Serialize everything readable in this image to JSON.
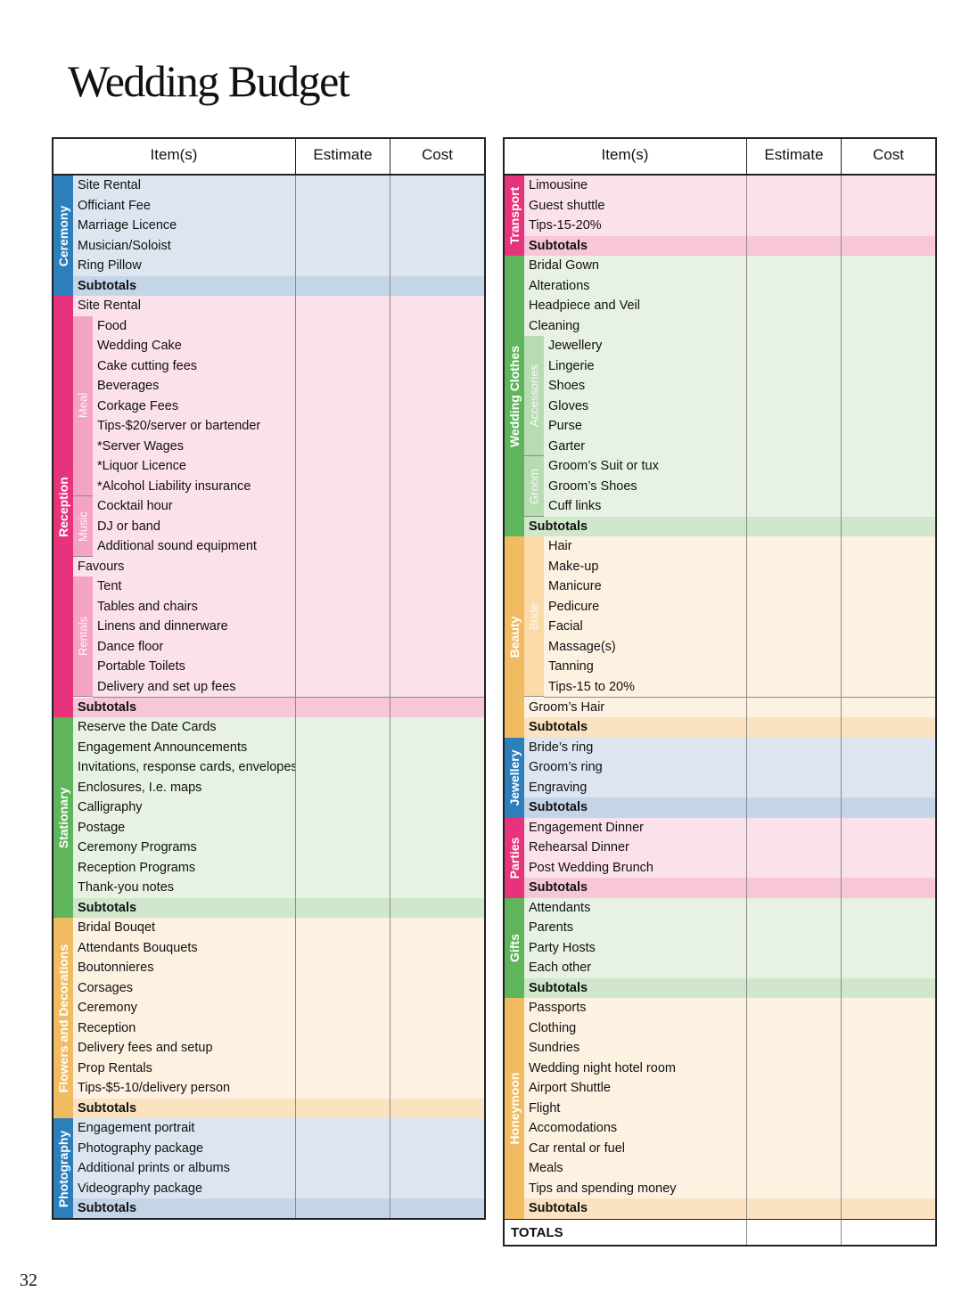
{
  "title": "Wedding Budget",
  "page_number": "32",
  "tables": [
    {
      "headers": [
        "Item(s)",
        "Estimate",
        "Cost"
      ],
      "sections": [
        {
          "label": "Ceremony",
          "color": "#2c7fba",
          "row_color": "#dde6f0",
          "subtotal_color": "#c4d5e8",
          "rows": [
            "Site Rental",
            "Officiant Fee",
            "Marriage Licence",
            "Musician/Soloist",
            "Ring Pillow"
          ],
          "subtotal": "Subtotals"
        },
        {
          "label": "Reception",
          "color": "#e6337c",
          "row_color": "#fbe1ea",
          "subtotal_color": "#f7c6d8",
          "group_color": "#f5a3c3",
          "rows": [
            "Site Rental",
            {
              "label": "Meal",
              "items": [
                "Food",
                "Wedding Cake",
                "Cake cutting fees",
                "Beverages",
                "Corkage Fees",
                "Tips-$20/server or bartender",
                "*Server Wages",
                "*Liquor Licence",
                "*Alcohol Liability insurance"
              ]
            },
            {
              "label": "Music",
              "items": [
                "Cocktail hour",
                "DJ or band",
                "Additional sound equipment"
              ]
            },
            "Favours",
            {
              "label": "Rentals",
              "items": [
                "Tent",
                "Tables and chairs",
                "Linens and dinnerware",
                "Dance floor",
                "Portable Toilets",
                "Delivery and set up fees"
              ]
            }
          ],
          "subtotal": "Subtotals"
        },
        {
          "label": "Stationary",
          "color": "#5fb55c",
          "row_color": "#e7f2e4",
          "subtotal_color": "#d0e7cc",
          "rows": [
            "Reserve the Date Cards",
            "Engagement Announcements",
            "Invitations, response cards, envelopes",
            "Enclosures, I.e. maps",
            "Calligraphy",
            "Postage",
            "Ceremony Programs",
            "Reception Programs",
            "Thank-you notes"
          ],
          "subtotal": "Subtotals"
        },
        {
          "label": "Flowers and Decorations",
          "color": "#f1bb62",
          "row_color": "#fdf2e2",
          "subtotal_color": "#fbe2c0",
          "rows": [
            "Bridal Bouqet",
            "Attendants Bouquets",
            "Boutonnieres",
            "Corsages",
            "Ceremony",
            "Reception",
            "Delivery fees and setup",
            "Prop Rentals",
            "Tips-$5-10/delivery person"
          ],
          "subtotal": "Subtotals"
        },
        {
          "label": "Photography",
          "color": "#2c7fba",
          "row_color": "#dde6f0",
          "subtotal_color": "#c4d5e8",
          "rows": [
            "Engagement portrait",
            "Photography package",
            "Additional prints or albums",
            "Videography package"
          ],
          "subtotal": "Subtotals"
        }
      ]
    },
    {
      "headers": [
        "Item(s)",
        "Estimate",
        "Cost"
      ],
      "sections": [
        {
          "label": "Transport",
          "color": "#e6337c",
          "row_color": "#fbe1ea",
          "subtotal_color": "#f7c6d8",
          "rows": [
            "Limousine",
            "Guest shuttle",
            "Tips-15-20%"
          ],
          "subtotal": "Subtotals"
        },
        {
          "label": "Wedding Clothes",
          "color": "#5fb55c",
          "row_color": "#e7f2e4",
          "subtotal_color": "#d0e7cc",
          "group_color": "#b8dcb2",
          "rows": [
            "Bridal Gown",
            "Alterations",
            "Headpiece and Veil",
            "Cleaning",
            {
              "label": "Accessories",
              "items": [
                "Jewellery",
                "Lingerie",
                "Shoes",
                "Gloves",
                "Purse",
                "Garter"
              ]
            },
            {
              "label": "Groom",
              "items": [
                "Groom’s Suit or tux",
                "Groom’s Shoes",
                "Cuff links"
              ]
            }
          ],
          "subtotal": "Subtotals"
        },
        {
          "label": "Beauty",
          "color": "#f1bb62",
          "row_color": "#fdf2e2",
          "subtotal_color": "#fbe2c0",
          "group_color": "#fcdaa8",
          "rows": [
            {
              "label": "Bride",
              "items": [
                "Hair",
                "Make-up",
                "Manicure",
                "Pedicure",
                "Facial",
                "Massage(s)",
                "Tanning",
                "Tips-15 to 20%"
              ]
            },
            "Groom’s Hair"
          ],
          "subtotal": "Subtotals"
        },
        {
          "label": "Jewellery",
          "color": "#2c7fba",
          "row_color": "#dde6f0",
          "subtotal_color": "#c4d5e8",
          "rows": [
            "Bride’s ring",
            "Groom’s ring",
            "Engraving"
          ],
          "subtotal": "Subtotals"
        },
        {
          "label": "Parties",
          "color": "#e6337c",
          "row_color": "#fbe1ea",
          "subtotal_color": "#f7c6d8",
          "rows": [
            "Engagement Dinner",
            "Rehearsal Dinner",
            "Post Wedding Brunch"
          ],
          "subtotal": "Subtotals"
        },
        {
          "label": "Gifts",
          "color": "#5fb55c",
          "row_color": "#e7f2e4",
          "subtotal_color": "#d0e7cc",
          "rows": [
            "Attendants",
            "Parents",
            "Party Hosts",
            "Each other"
          ],
          "subtotal": "Subtotals"
        },
        {
          "label": "Honeymoon",
          "color": "#f1bb62",
          "row_color": "#fdf2e2",
          "subtotal_color": "#fbe2c0",
          "rows": [
            "Passports",
            "Clothing",
            "Sundries",
            "Wedding night hotel room",
            "Airport Shuttle",
            "Flight",
            "Accomodations",
            "Car rental or fuel",
            "Meals",
            "Tips and spending money"
          ],
          "subtotal": "Subtotals"
        }
      ],
      "totals": "TOTALS"
    }
  ]
}
